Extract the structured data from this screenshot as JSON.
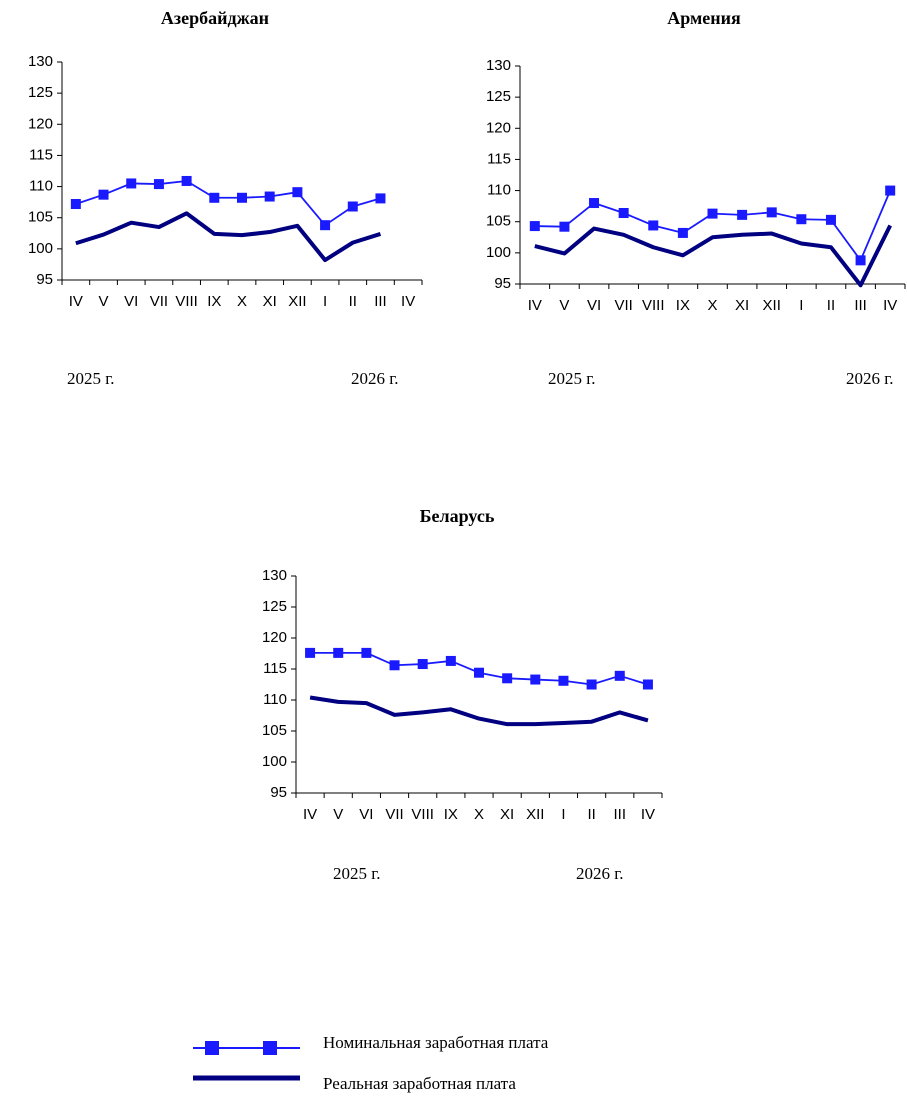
{
  "legend": [
    {
      "name": "Номинальная заработная плата",
      "color": "#1a1aff"
    },
    {
      "name": "Реальная заработная плата",
      "color": "#000080"
    }
  ],
  "chart_data": [
    {
      "type": "line",
      "title": "Азербайджан",
      "categories": [
        "IV",
        "V",
        "VI",
        "VII",
        "VIII",
        "IX",
        "X",
        "XI",
        "XII",
        "I",
        "II",
        "III",
        "IV"
      ],
      "series": [
        {
          "values": [
            107.2,
            108.7,
            110.5,
            110.4,
            110.9,
            108.2,
            108.2,
            108.4,
            109.1,
            103.8,
            106.8,
            108.1,
            null
          ]
        },
        {
          "values": [
            100.9,
            102.3,
            104.2,
            103.5,
            105.7,
            102.4,
            102.2,
            102.7,
            103.7,
            98.2,
            101.0,
            102.4,
            null
          ]
        }
      ],
      "annotations": [
        "2025 г.",
        "2026 г."
      ],
      "ylim": [
        95,
        130
      ],
      "yticks": [
        95,
        100,
        105,
        110,
        115,
        120,
        125,
        130
      ]
    },
    {
      "type": "line",
      "title": "Армения",
      "categories": [
        "IV",
        "V",
        "VI",
        "VII",
        "VIII",
        "IX",
        "X",
        "XI",
        "XII",
        "I",
        "II",
        "III",
        "IV"
      ],
      "series": [
        {
          "values": [
            104.3,
            104.2,
            108.0,
            106.4,
            104.4,
            103.2,
            106.3,
            106.1,
            106.5,
            105.4,
            105.3,
            98.8,
            110.0
          ]
        },
        {
          "values": [
            101.1,
            99.9,
            103.9,
            102.9,
            100.9,
            99.6,
            102.5,
            102.9,
            103.1,
            101.5,
            100.9,
            94.8,
            104.4
          ]
        }
      ],
      "annotations": [
        "2025 г.",
        "2026 г."
      ],
      "ylim": [
        95,
        130
      ],
      "yticks": [
        95,
        100,
        105,
        110,
        115,
        120,
        125,
        130
      ]
    },
    {
      "type": "line",
      "title": "Беларусь",
      "categories": [
        "IV",
        "V",
        "VI",
        "VII",
        "VIII",
        "IX",
        "X",
        "XI",
        "XII",
        "I",
        "II",
        "III",
        "IV"
      ],
      "series": [
        {
          "values": [
            117.6,
            117.6,
            117.6,
            115.6,
            115.8,
            116.3,
            114.4,
            113.5,
            113.3,
            113.1,
            112.5,
            113.9,
            112.5
          ]
        },
        {
          "values": [
            110.4,
            109.7,
            109.5,
            107.6,
            108.0,
            108.5,
            107.0,
            106.1,
            106.1,
            106.3,
            106.5,
            108.0,
            106.7
          ]
        }
      ],
      "annotations": [
        "2025 г.",
        "2026 г."
      ],
      "ylim": [
        95,
        130
      ],
      "yticks": [
        95,
        100,
        105,
        110,
        115,
        120,
        125,
        130
      ]
    }
  ]
}
